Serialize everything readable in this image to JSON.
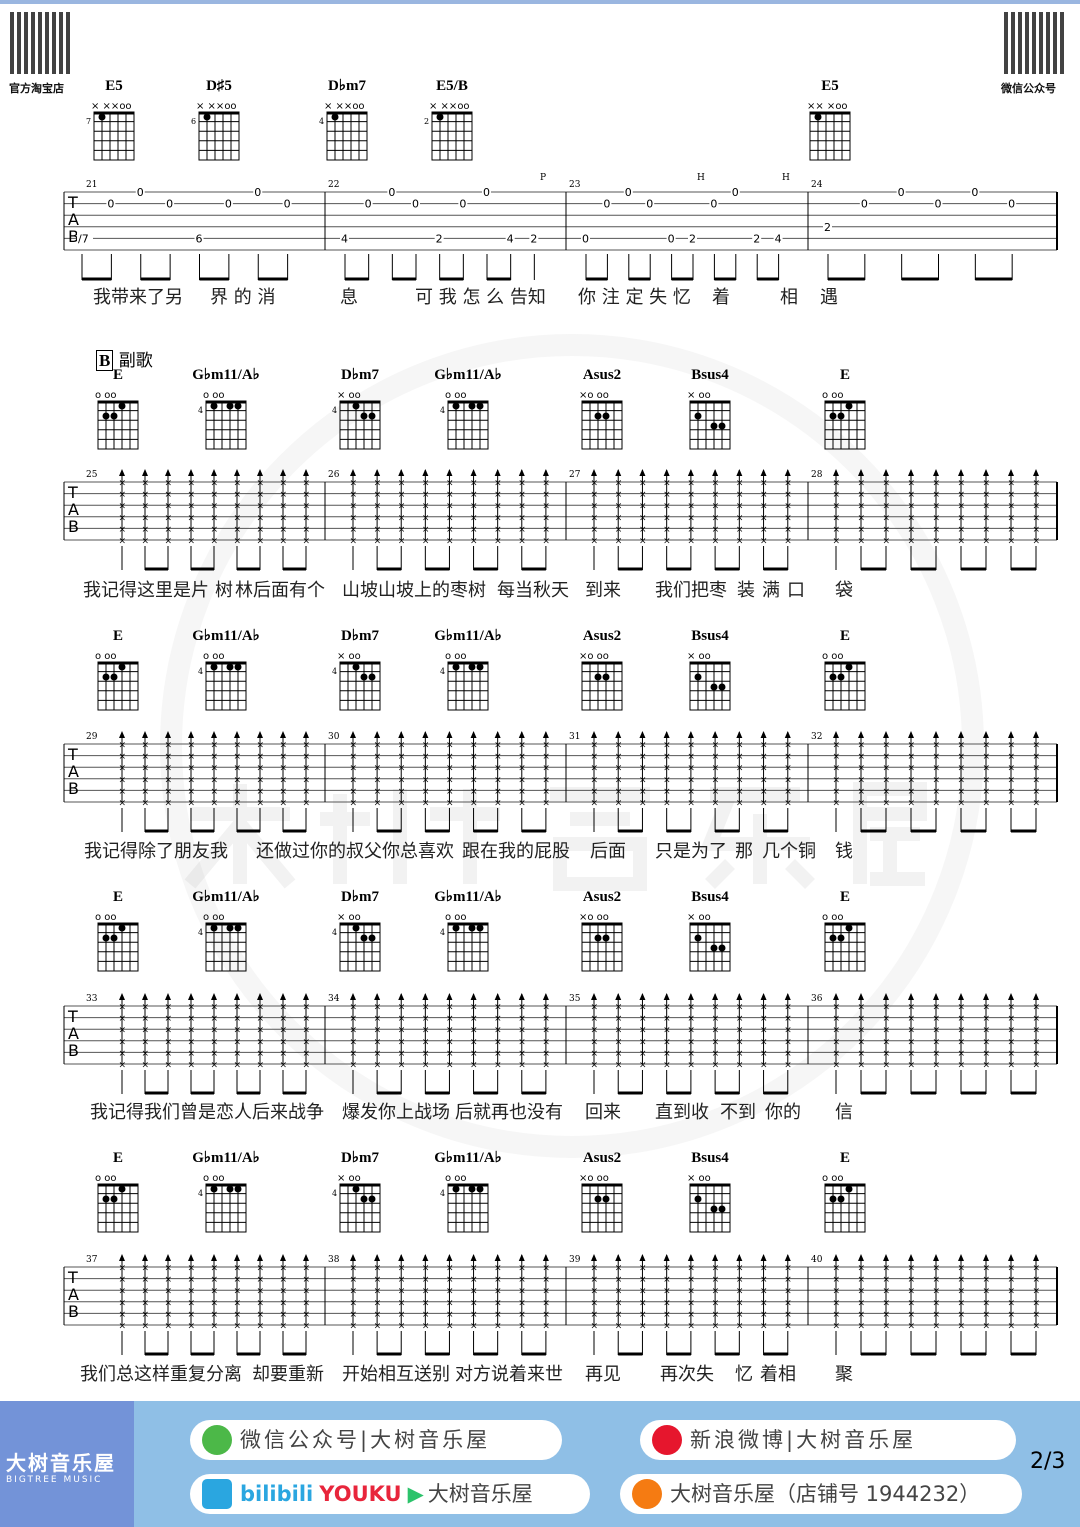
{
  "header": {
    "left_qr_label": "官方淘宝店",
    "right_qr_label": "微信公众号"
  },
  "section": {
    "letter": "B",
    "name": "副歌"
  },
  "watermark": "大树音乐屋",
  "systems": [
    {
      "chords": [
        {
          "name": "E5",
          "mute": "× ××oo",
          "fret": "7"
        },
        {
          "name": "D♯5",
          "mute": "× ××oo",
          "fret": "6"
        },
        {
          "name": "D♭m7",
          "mute": "× ××oo",
          "fret": "4"
        },
        {
          "name": "E5/B",
          "mute": "× ××oo",
          "fret": "2"
        },
        {
          "name": "E5",
          "mute": "×× ×oo",
          "fret": ""
        }
      ],
      "measures": [
        21,
        22,
        23,
        24
      ],
      "techniques": [
        "P",
        "H",
        "H"
      ],
      "tab": [
        [
          [
            [
              5,
              "/7"
            ]
          ],
          [
            [
              2,
              "0"
            ]
          ],
          [
            [
              1,
              "0"
            ]
          ],
          [
            [
              2,
              "0"
            ]
          ],
          [
            [
              5,
              "6"
            ]
          ],
          [
            [
              2,
              "0"
            ]
          ],
          [
            [
              1,
              "0"
            ]
          ],
          [
            [
              2,
              "0"
            ]
          ]
        ],
        [
          [
            [
              5,
              "4"
            ]
          ],
          [
            [
              2,
              "0"
            ]
          ],
          [
            [
              1,
              "0"
            ]
          ],
          [
            [
              2,
              "0"
            ]
          ],
          [
            [
              5,
              "2"
            ]
          ],
          [
            [
              2,
              "0"
            ]
          ],
          [
            [
              1,
              "0"
            ]
          ],
          [
            [
              5,
              "4"
            ]
          ],
          [
            [
              5,
              "2"
            ]
          ]
        ],
        [
          [
            [
              5,
              "0"
            ]
          ],
          [
            [
              2,
              "0"
            ]
          ],
          [
            [
              1,
              "0"
            ]
          ],
          [
            [
              2,
              "0"
            ]
          ],
          [
            [
              5,
              "0"
            ]
          ],
          [
            [
              5,
              "2"
            ]
          ],
          [
            [
              2,
              "0"
            ]
          ],
          [
            [
              1,
              "0"
            ]
          ],
          [
            [
              5,
              "2"
            ]
          ],
          [
            [
              5,
              "4"
            ]
          ]
        ],
        [
          [
            [
              4,
              "2"
            ]
          ],
          [
            [
              2,
              "0"
            ]
          ],
          [
            [
              1,
              "0"
            ]
          ],
          [
            [
              2,
              "0"
            ]
          ],
          [
            [
              1,
              "0"
            ]
          ],
          [
            [
              2,
              "0"
            ]
          ]
        ]
      ],
      "lyrics": [
        "我带来了另",
        "界 的 消",
        "息",
        "可 我 怎 么 告知",
        "你 注 定 失 忆",
        "着",
        "相",
        "遇"
      ]
    },
    {
      "chords": [
        {
          "name": "E",
          "mute": "o    oo",
          "fret": ""
        },
        {
          "name": "G♭m11/A♭",
          "mute": "  o  oo",
          "fret": "4"
        },
        {
          "name": "D♭m7",
          "mute": "×    oo",
          "fret": "4"
        },
        {
          "name": "G♭m11/A♭",
          "mute": "  o  oo",
          "fret": "4"
        },
        {
          "name": "Asus2",
          "mute": "×o   oo",
          "fret": ""
        },
        {
          "name": "Bsus4",
          "mute": "×    oo",
          "fret": ""
        },
        {
          "name": "E",
          "mute": "o    oo",
          "fret": ""
        }
      ],
      "measures": [
        25,
        26,
        27,
        28
      ],
      "lyrics": [
        "我记得这里是片",
        "树",
        "林后面有个",
        "山坡山坡上的枣树",
        "每当秋天",
        "到来",
        "我们把枣",
        "装",
        "满",
        "口",
        "袋"
      ]
    },
    {
      "chords": [
        {
          "name": "E",
          "mute": "o    oo",
          "fret": ""
        },
        {
          "name": "G♭m11/A♭",
          "mute": "  o  oo",
          "fret": "4"
        },
        {
          "name": "D♭m7",
          "mute": "×    oo",
          "fret": "4"
        },
        {
          "name": "G♭m11/A♭",
          "mute": "  o  oo",
          "fret": "4"
        },
        {
          "name": "Asus2",
          "mute": "×o   oo",
          "fret": ""
        },
        {
          "name": "Bsus4",
          "mute": "×    oo",
          "fret": ""
        },
        {
          "name": "E",
          "mute": "o    oo",
          "fret": ""
        }
      ],
      "measures": [
        29,
        30,
        31,
        32
      ],
      "lyrics": [
        "我记得除了朋友我",
        "还做过你的叔父你总喜欢",
        "跟在我的屁股",
        "后面",
        "只是为了",
        "那",
        "几个铜",
        "钱"
      ]
    },
    {
      "chords": [
        {
          "name": "E",
          "mute": "o    oo",
          "fret": ""
        },
        {
          "name": "G♭m11/A♭",
          "mute": "  o  oo",
          "fret": "4"
        },
        {
          "name": "D♭m7",
          "mute": "×    oo",
          "fret": "4"
        },
        {
          "name": "G♭m11/A♭",
          "mute": "  o  oo",
          "fret": "4"
        },
        {
          "name": "Asus2",
          "mute": "×o   oo",
          "fret": ""
        },
        {
          "name": "Bsus4",
          "mute": "×    oo",
          "fret": ""
        },
        {
          "name": "E",
          "mute": "o    oo",
          "fret": ""
        }
      ],
      "measures": [
        33,
        34,
        35,
        36
      ],
      "lyrics": [
        "我记得我们曾是恋人后来战争",
        "爆发你上战场",
        "后就再也没有",
        "回来",
        "直到收",
        "不到",
        "你的",
        "信"
      ]
    },
    {
      "chords": [
        {
          "name": "E",
          "mute": "o    oo",
          "fret": ""
        },
        {
          "name": "G♭m11/A♭",
          "mute": "  o  oo",
          "fret": "4"
        },
        {
          "name": "D♭m7",
          "mute": "×    oo",
          "fret": "4"
        },
        {
          "name": "G♭m11/A♭",
          "mute": "  o  oo",
          "fret": "4"
        },
        {
          "name": "Asus2",
          "mute": "×o   oo",
          "fret": ""
        },
        {
          "name": "Bsus4",
          "mute": "×    oo",
          "fret": ""
        },
        {
          "name": "E",
          "mute": "o    oo",
          "fret": ""
        }
      ],
      "measures": [
        37,
        38,
        39,
        40
      ],
      "lyrics": [
        "我们总这样重复分离",
        "却要重新",
        "开始相互送别",
        "对方说着来世",
        "再见",
        "再次失",
        "忆",
        "着相",
        "聚"
      ]
    }
  ],
  "footer": {
    "brand": "大树音乐屋",
    "brand_en": "BIGTREE MUSIC",
    "wechat": "微信公众号|大树音乐屋",
    "weibo": "新浪微博|大树音乐屋",
    "video": "大树音乐屋",
    "bilibili": "bilibili",
    "youku": "YOUKU",
    "taobao": "大树音乐屋（店铺号 1944232）",
    "page": "2/3",
    "colors": {
      "bar": "#8fbfe6",
      "brand_panel": "#7393d8"
    }
  }
}
